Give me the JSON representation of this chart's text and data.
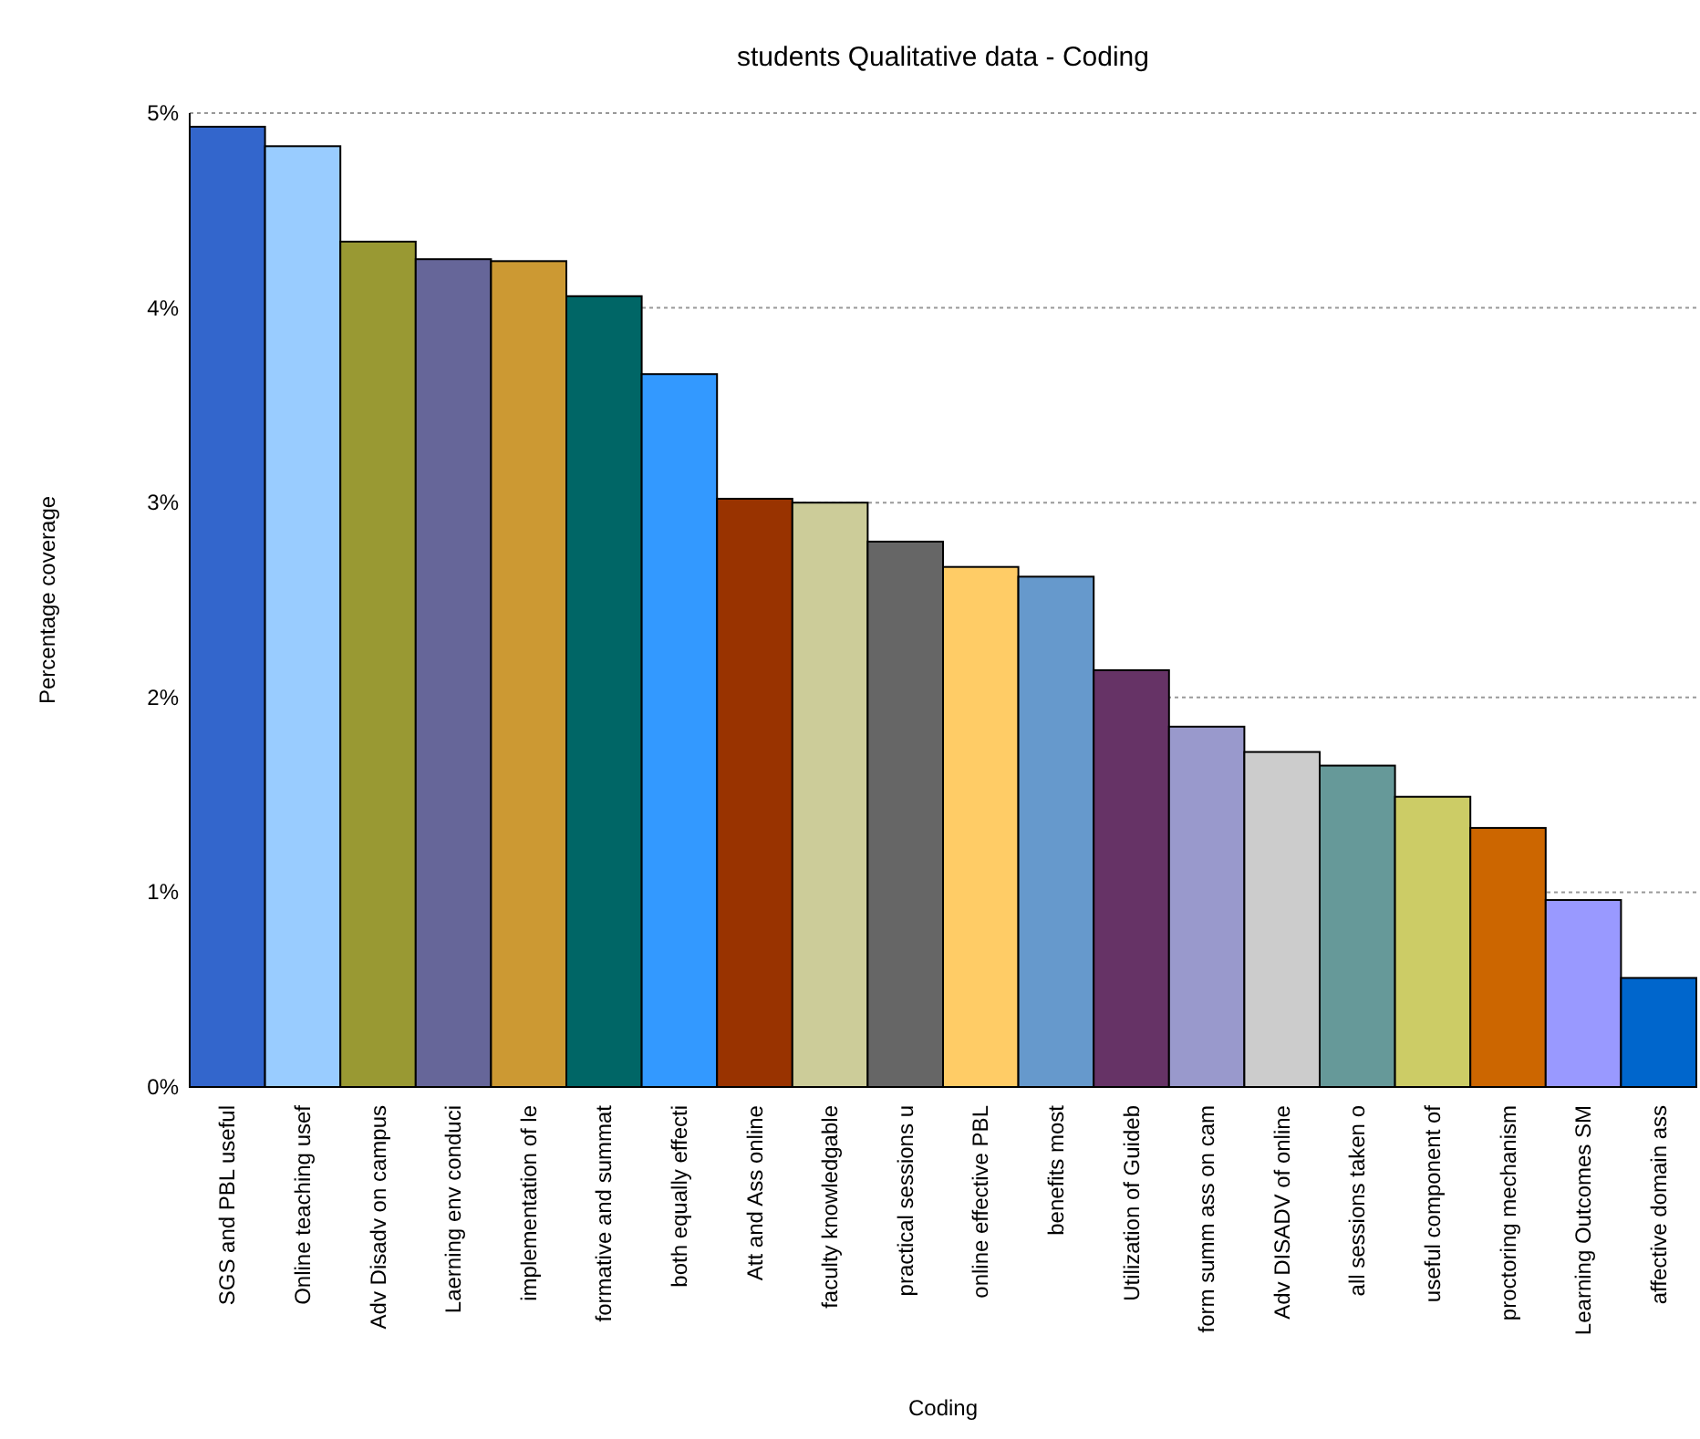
{
  "chart_data": {
    "type": "bar",
    "title": "students Qualitative data - Coding",
    "xlabel": "Coding",
    "ylabel": "Percentage coverage",
    "categories": [
      "SGS and PBL useful",
      "Online teaching usef",
      "Adv Disadv on campus",
      "Laerning env conduci",
      "implementation of le",
      "formative and summat",
      "both equally effecti",
      "Att and Ass online",
      "faculty knowledgable",
      "practical sessions u",
      "online effective PBL",
      "benefits most",
      "Utilization of Guideb",
      "form summ ass on cam",
      "Adv DISADV of online",
      "all sessions taken o",
      "useful component of",
      "proctoring mechanism",
      "Learning Outcomes SM",
      "affective domain ass"
    ],
    "values": [
      4.93,
      4.83,
      4.34,
      4.25,
      4.24,
      4.06,
      3.66,
      3.02,
      3.0,
      2.8,
      2.67,
      2.62,
      2.14,
      1.85,
      1.72,
      1.65,
      1.49,
      1.33,
      0.96,
      0.56
    ],
    "colors": [
      "#3366cc",
      "#99ccff",
      "#999933",
      "#666699",
      "#cc9933",
      "#006666",
      "#3399ff",
      "#993300",
      "#cccc99",
      "#666666",
      "#ffcc66",
      "#6699cc",
      "#663366",
      "#9999cc",
      "#cccccc",
      "#669999",
      "#cccc66",
      "#cc6600",
      "#9999ff",
      "#0066cc"
    ],
    "ylim": [
      0,
      5
    ],
    "yticks": [
      {
        "value": 0,
        "label": "0%"
      },
      {
        "value": 1,
        "label": "1%"
      },
      {
        "value": 2,
        "label": "2%"
      },
      {
        "value": 3,
        "label": "3%"
      },
      {
        "value": 4,
        "label": "4%"
      },
      {
        "value": 5,
        "label": "5%"
      }
    ],
    "grid": "y"
  }
}
